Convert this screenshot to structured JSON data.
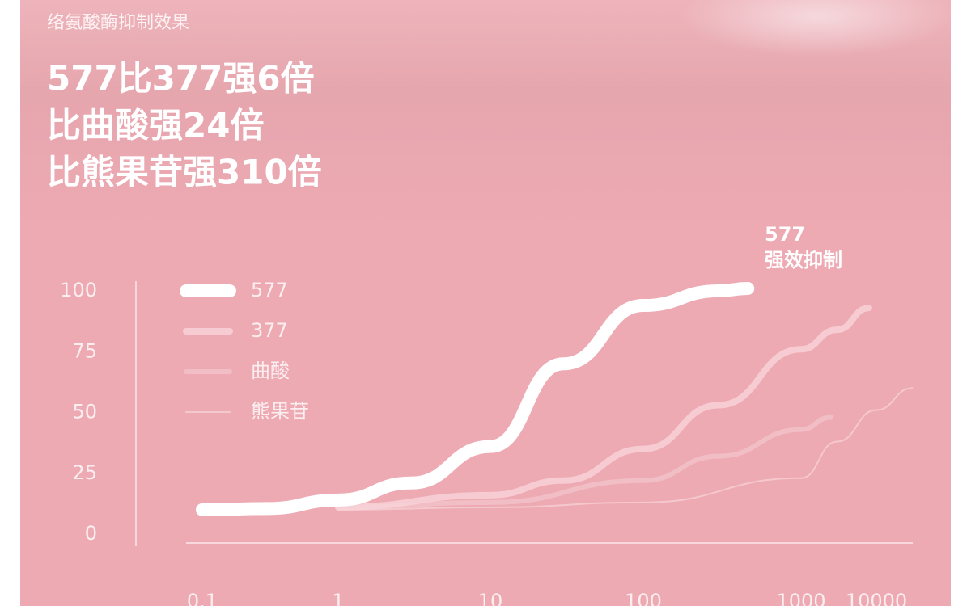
{
  "chart_data": {
    "type": "line",
    "title": "络氨酸酶抑制效果",
    "headline": [
      "577比377强6倍",
      "比曲酸强24倍",
      "比熊果苷强310倍"
    ],
    "annotation": [
      "577",
      "强效抑制"
    ],
    "xlog": true,
    "xlim": [
      0.1,
      30000
    ],
    "xticks": [
      0.1,
      1,
      10,
      100,
      1000,
      10000
    ],
    "ylim": [
      0,
      100
    ],
    "yticks": [
      0,
      25,
      50,
      75,
      100
    ],
    "series": [
      {
        "name": "577",
        "color": "#ffffff",
        "x": [
          0.1,
          0.3,
          1,
          3,
          10,
          30,
          100,
          300,
          460
        ],
        "values": [
          10,
          10.5,
          14,
          21,
          36,
          70,
          94,
          100,
          101
        ]
      },
      {
        "name": "377",
        "color": "#f8d6db",
        "x": [
          1,
          10,
          30,
          100,
          300,
          1000,
          3000,
          8000
        ],
        "values": [
          11,
          16,
          22,
          35,
          53,
          76,
          84,
          93
        ]
      },
      {
        "name": "曲酸",
        "color": "#f5cad0",
        "x": [
          1,
          10,
          100,
          300,
          1000,
          2500
        ],
        "values": [
          11,
          13,
          22,
          32,
          43,
          48
        ]
      },
      {
        "name": "熊果苷",
        "color": "#f7d4d9",
        "x": [
          1,
          10,
          100,
          1000,
          3000,
          10000,
          30000
        ],
        "values": [
          10,
          11,
          13,
          23,
          38,
          51,
          60
        ]
      }
    ]
  }
}
